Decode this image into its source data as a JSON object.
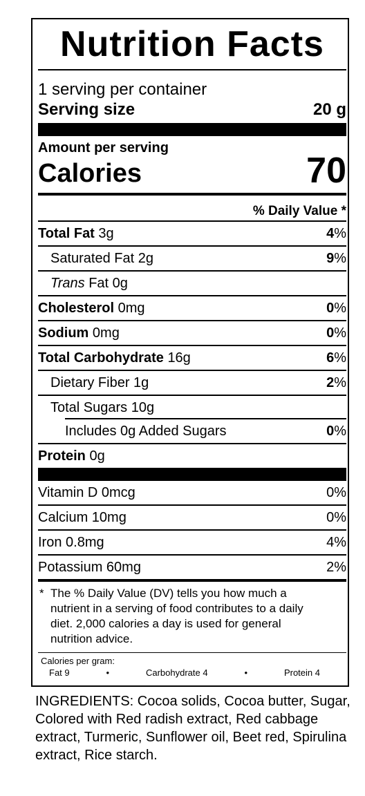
{
  "title": "Nutrition Facts",
  "servings_per_container": "1 serving per container",
  "serving_size_label": "Serving size",
  "serving_size_value": "20 g",
  "amount_per_serving": "Amount per serving",
  "calories_label": "Calories",
  "calories_value": "70",
  "daily_value_header": "% Daily Value *",
  "nutrients": [
    {
      "name": "Total Fat",
      "amount": "3g",
      "dv": "4"
    },
    {
      "name": "Saturated Fat",
      "amount": "2g",
      "dv": "9"
    },
    {
      "name": "Trans",
      "name_suffix": "Fat",
      "amount": "0g",
      "dv": ""
    },
    {
      "name": "Cholesterol",
      "amount": "0mg",
      "dv": "0"
    },
    {
      "name": "Sodium",
      "amount": "0mg",
      "dv": "0"
    },
    {
      "name": "Total Carbohydrate",
      "amount": "16g",
      "dv": "6"
    },
    {
      "name": "Dietary Fiber",
      "amount": "1g",
      "dv": "2"
    },
    {
      "name": "Total Sugars",
      "amount": "10g",
      "dv": ""
    },
    {
      "name": "Includes 0g Added Sugars",
      "dv": "0"
    },
    {
      "name": "Protein",
      "amount": "0g"
    }
  ],
  "vitamins": [
    {
      "name": "Vitamin D 0mcg",
      "dv": "0%"
    },
    {
      "name": "Calcium 10mg",
      "dv": "0%"
    },
    {
      "name": "Iron 0.8mg",
      "dv": "4%"
    },
    {
      "name": "Potassium 60mg",
      "dv": "2%"
    }
  ],
  "pct_sign": "%",
  "footnote_star": "*",
  "footnote": "The % Daily Value (DV) tells you how much a nutrient in a serving of food contributes to a daily diet. 2,000 calories a day is used for general nutrition advice.",
  "calories_per_gram": {
    "label": "Calories per gram:",
    "fat": "Fat 9",
    "carbohydrate": "Carbohydrate 4",
    "protein": "Protein 4",
    "separator": "•"
  },
  "ingredients": "INGREDIENTS: Cocoa solids, Cocoa butter, Sugar, Colored with Red radish extract, Red cabbage extract, Turmeric, Sunflower oil, Beet red, Spirulina extract, Rice starch."
}
